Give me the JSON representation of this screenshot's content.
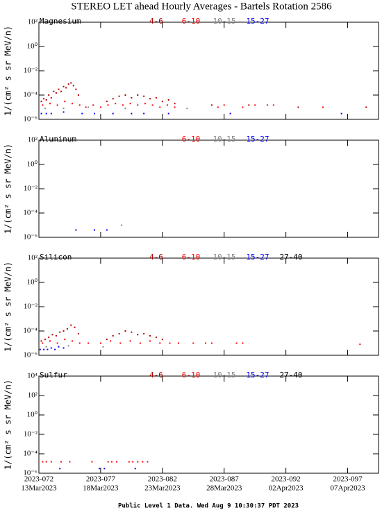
{
  "title": "STEREO LET ahead Hourly Averages - Bartels Rotation 2586",
  "footer": "Public Level 1 Data. Wed Aug  9 10:30:37 PDT 2023",
  "chart_data": [
    {
      "type": "scatter",
      "title": "Magnesium",
      "ylabel": "1/(cm² s sr MeV/n)",
      "log": true,
      "xlim": [
        72,
        99.5
      ],
      "xticks": [
        72,
        77,
        82,
        87,
        92,
        97
      ],
      "ylim": [
        1e-06,
        100
      ],
      "yticks": [
        {
          "value": 1e-06,
          "label": "10⁻⁶"
        },
        {
          "value": 0.0001,
          "label": "10⁻⁴"
        },
        {
          "value": 0.01,
          "label": "10⁻²"
        },
        {
          "value": 1,
          "label": "10⁰"
        },
        {
          "value": 100,
          "label": "10²"
        }
      ],
      "series": [
        {
          "name": "4-6",
          "color": "#b00000",
          "x": [
            72.2,
            72.4,
            72.6,
            72.8,
            73.0,
            73.2,
            73.4,
            73.6,
            73.8,
            74.0,
            74.2,
            74.4,
            74.6,
            74.8,
            75.0,
            75.2,
            77.5,
            78.0,
            78.5,
            79.0,
            79.5,
            80.0,
            80.5,
            81.0,
            81.5,
            82.0,
            82.5,
            83.0,
            86.0,
            89.0,
            93.0,
            98.5
          ],
          "values": [
            3e-05,
            5e-05,
            4e-05,
            0.0001,
            6e-05,
            0.0002,
            0.00015,
            0.0003,
            0.0002,
            0.0005,
            0.0004,
            0.0008,
            0.001,
            0.0006,
            0.0003,
            0.0001,
            3e-05,
            5e-05,
            8e-05,
            0.0001,
            6e-05,
            0.0001,
            8e-05,
            5e-05,
            6e-05,
            3e-05,
            4e-05,
            2e-05,
            1.5e-05,
            1.5e-05,
            1e-05,
            1e-05
          ]
        },
        {
          "name": "6-10",
          "color": "#ff0000",
          "x": [
            72.3,
            72.9,
            73.5,
            74.1,
            74.7,
            75.3,
            75.8,
            76.4,
            77.0,
            77.6,
            78.2,
            78.8,
            79.4,
            80.0,
            80.6,
            81.2,
            81.8,
            82.4,
            83.0,
            86.5,
            87.0,
            88.5,
            89.5,
            90.5,
            91.0,
            95.0
          ],
          "values": [
            1.5e-05,
            2e-05,
            1.5e-05,
            3e-05,
            2e-05,
            1.5e-05,
            1e-05,
            1.5e-05,
            1e-05,
            1.5e-05,
            2e-05,
            1.5e-05,
            2e-05,
            1.5e-05,
            2e-05,
            1.5e-05,
            1e-05,
            1.5e-05,
            1e-05,
            1e-05,
            1.5e-05,
            1e-05,
            1.5e-05,
            1.5e-05,
            1.5e-05,
            1e-05
          ]
        },
        {
          "name": "10-15",
          "color": "#888888",
          "x": [
            72.5,
            74.0,
            76.0,
            79.0,
            84.0
          ],
          "values": [
            8e-06,
            8e-06,
            1e-05,
            8e-06,
            8e-06
          ]
        },
        {
          "name": "15-27",
          "color": "#0000ff",
          "x": [
            72.2,
            72.6,
            73.0,
            74.0,
            75.5,
            76.5,
            78.0,
            79.5,
            80.5,
            82.5,
            87.5,
            96.5
          ],
          "values": [
            3e-06,
            3e-06,
            3e-06,
            4e-06,
            3e-06,
            3e-06,
            3e-06,
            3e-06,
            3e-06,
            3e-06,
            3e-06,
            3e-06
          ]
        }
      ]
    },
    {
      "type": "scatter",
      "title": "Aluminum",
      "ylabel": "1/(cm² s sr MeV/n)",
      "log": true,
      "xlim": [
        72,
        99.5
      ],
      "xticks": [
        72,
        77,
        82,
        87,
        92,
        97
      ],
      "ylim": [
        1e-06,
        100
      ],
      "yticks": [
        {
          "value": 1e-06,
          "label": "10⁻⁶"
        },
        {
          "value": 0.0001,
          "label": "10⁻⁴"
        },
        {
          "value": 0.01,
          "label": "10⁻²"
        },
        {
          "value": 1,
          "label": "10⁰"
        },
        {
          "value": 100,
          "label": "10²"
        }
      ],
      "series": [
        {
          "name": "6-10",
          "color": "#ff0000",
          "x": [],
          "values": []
        },
        {
          "name": "10-15",
          "color": "#888888",
          "x": [
            78.7
          ],
          "values": [
            1e-05
          ]
        },
        {
          "name": "15-27",
          "color": "#0000ff",
          "x": [
            75.0,
            76.5,
            77.5
          ],
          "values": [
            4e-06,
            4e-06,
            4e-06
          ]
        }
      ]
    },
    {
      "type": "scatter",
      "title": "Silicon",
      "ylabel": "1/(cm² s sr MeV/n)",
      "log": true,
      "xlim": [
        72,
        99.5
      ],
      "xticks": [
        72,
        77,
        82,
        87,
        92,
        97
      ],
      "ylim": [
        1e-06,
        100
      ],
      "yticks": [
        {
          "value": 1e-06,
          "label": "10⁻⁶"
        },
        {
          "value": 0.0001,
          "label": "10⁻⁴"
        },
        {
          "value": 0.01,
          "label": "10⁻²"
        },
        {
          "value": 1,
          "label": "10⁰"
        },
        {
          "value": 100,
          "label": "10²"
        }
      ],
      "series": [
        {
          "name": "4-6",
          "color": "#b00000",
          "x": [
            72.2,
            72.5,
            72.8,
            73.1,
            73.4,
            73.7,
            74.0,
            74.3,
            74.6,
            74.9,
            75.2,
            77.5,
            78.0,
            78.5,
            79.0,
            79.5,
            80.0,
            80.5,
            81.0,
            81.5,
            82.0
          ],
          "values": [
            1.5e-05,
            2e-05,
            3e-05,
            5e-05,
            4e-05,
            8e-05,
            0.0001,
            0.00015,
            0.0003,
            0.0002,
            6e-05,
            2e-05,
            4e-05,
            6e-05,
            0.0001,
            8e-05,
            5e-05,
            6e-05,
            4e-05,
            3e-05,
            2e-05
          ]
        },
        {
          "name": "6-10",
          "color": "#ff0000",
          "x": [
            72.3,
            72.9,
            73.5,
            74.1,
            74.7,
            75.3,
            76.0,
            77.0,
            77.8,
            78.6,
            79.4,
            80.2,
            81.0,
            81.8,
            82.6,
            83.3,
            84.5,
            85.5,
            86.0,
            88.0,
            88.5,
            98.0
          ],
          "values": [
            1e-05,
            1.5e-05,
            1e-05,
            2e-05,
            1.5e-05,
            1e-05,
            1e-05,
            1e-05,
            1.5e-05,
            1e-05,
            1.5e-05,
            1e-05,
            1.5e-05,
            1e-05,
            1e-05,
            1e-05,
            1e-05,
            1e-05,
            1e-05,
            1e-05,
            1e-05,
            8e-06
          ]
        },
        {
          "name": "10-15",
          "color": "#888888",
          "x": [
            72.6,
            74.4,
            77.2
          ],
          "values": [
            5e-06,
            6e-06,
            5e-06
          ]
        },
        {
          "name": "15-27",
          "color": "#0000ff",
          "x": [
            72.1,
            72.4,
            72.7,
            73.0,
            73.3,
            73.6,
            74.0
          ],
          "values": [
            3e-06,
            3e-06,
            3e-06,
            4e-06,
            3e-06,
            5e-06,
            4e-06
          ]
        },
        {
          "name": "27-40",
          "color": "#000000",
          "x": [],
          "values": []
        }
      ]
    },
    {
      "type": "scatter",
      "title": "Sulfur",
      "ylabel": "1/(cm² s sr MeV/n)",
      "log": true,
      "xlim": [
        72,
        99.5
      ],
      "xticks": [
        {
          "value": 72,
          "label": "2023-072"
        },
        {
          "value": 77,
          "label": "2023-077"
        },
        {
          "value": 82,
          "label": "2023-082"
        },
        {
          "value": 87,
          "label": "2023-087"
        },
        {
          "value": 92,
          "label": "2023-092"
        },
        {
          "value": 97,
          "label": "2023-097"
        }
      ],
      "xtick_dates": [
        "13Mar2023",
        "18Mar2023",
        "23Mar2023",
        "28Mar2023",
        "02Apr2023",
        "07Apr2023"
      ],
      "ylim": [
        1e-06,
        10000
      ],
      "yticks": [
        {
          "value": 1e-06,
          "label": "10⁻⁶"
        },
        {
          "value": 0.0001,
          "label": "10⁻⁴"
        },
        {
          "value": 0.01,
          "label": "10⁻²"
        },
        {
          "value": 1,
          "label": "10⁰"
        },
        {
          "value": 100,
          "label": "10²"
        },
        {
          "value": 10000,
          "label": "10⁴"
        }
      ],
      "series": [
        {
          "name": "4-6",
          "color": "#b00000",
          "x": [],
          "values": []
        },
        {
          "name": "6-10",
          "color": "#ff0000",
          "x": [
            72.3,
            72.6,
            73.0,
            73.8,
            74.5,
            76.3,
            77.6,
            77.9,
            78.3,
            79.3,
            79.6,
            80.0,
            80.4,
            80.8
          ],
          "values": [
            1.5e-05,
            1.5e-05,
            1.5e-05,
            1.5e-05,
            1.5e-05,
            1.5e-05,
            1.5e-05,
            1.5e-05,
            1.5e-05,
            1.5e-05,
            1.5e-05,
            1.5e-05,
            1.5e-05,
            1.5e-05
          ]
        },
        {
          "name": "10-15",
          "color": "#888888",
          "x": [],
          "values": []
        },
        {
          "name": "15-27",
          "color": "#0000ff",
          "x": [
            73.7,
            76.9,
            77.3,
            79.8
          ],
          "values": [
            3e-06,
            3e-06,
            3e-06,
            3e-06
          ]
        },
        {
          "name": "27-40",
          "color": "#000000",
          "x": [],
          "values": []
        }
      ]
    }
  ]
}
